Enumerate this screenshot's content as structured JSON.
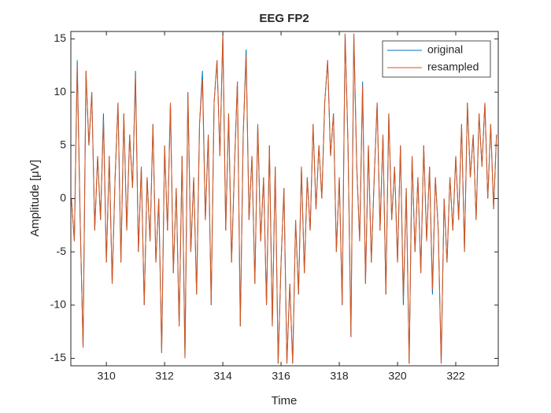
{
  "chart_data": {
    "type": "line",
    "title": "EEG FP2",
    "xlabel": "Time",
    "ylabel": "Amplitude [μV]",
    "x": [
      308.8,
      308.9,
      309.0,
      309.1,
      309.2,
      309.3,
      309.4,
      309.5,
      309.6,
      309.7,
      309.8,
      309.9,
      310.0,
      310.1,
      310.2,
      310.3,
      310.4,
      310.5,
      310.6,
      310.7,
      310.8,
      310.9,
      311.0,
      311.1,
      311.2,
      311.3,
      311.4,
      311.5,
      311.6,
      311.7,
      311.8,
      311.9,
      312.0,
      312.1,
      312.2,
      312.3,
      312.4,
      312.5,
      312.6,
      312.7,
      312.8,
      312.9,
      313.0,
      313.1,
      313.2,
      313.3,
      313.4,
      313.5,
      313.6,
      313.7,
      313.8,
      313.9,
      314.0,
      314.1,
      314.2,
      314.3,
      314.4,
      314.5,
      314.6,
      314.7,
      314.8,
      314.9,
      315.0,
      315.1,
      315.2,
      315.3,
      315.4,
      315.5,
      315.6,
      315.7,
      315.8,
      315.9,
      316.0,
      316.1,
      316.2,
      316.3,
      316.4,
      316.5,
      316.6,
      316.7,
      316.8,
      316.9,
      317.0,
      317.1,
      317.2,
      317.3,
      317.4,
      317.5,
      317.6,
      317.7,
      317.8,
      317.9,
      318.0,
      318.1,
      318.2,
      318.3,
      318.4,
      318.5,
      318.6,
      318.7,
      318.8,
      318.9,
      319.0,
      319.1,
      319.2,
      319.3,
      319.4,
      319.5,
      319.6,
      319.7,
      319.8,
      319.9,
      320.0,
      320.1,
      320.2,
      320.3,
      320.4,
      320.5,
      320.6,
      320.7,
      320.8,
      320.9,
      321.0,
      321.1,
      321.2,
      321.3,
      321.4,
      321.5,
      321.6,
      321.7,
      321.8,
      321.9,
      322.0,
      322.1,
      322.2,
      322.3,
      322.4,
      322.5,
      322.6,
      322.7,
      322.8,
      322.9,
      323.0,
      323.1,
      323.2,
      323.3,
      323.4
    ],
    "series": [
      {
        "name": "original",
        "color": "#0072BD",
        "values": [
          0,
          -4,
          13,
          -2,
          -14,
          12,
          5,
          10,
          -3,
          4,
          -2,
          8,
          -6,
          4,
          -8,
          2,
          9,
          -6,
          8,
          -3,
          6,
          1,
          12,
          -5,
          3,
          -10,
          2,
          -4,
          7,
          -6,
          0,
          -14.5,
          5,
          -3,
          9,
          -7,
          1,
          -12,
          4,
          -15,
          10,
          -5,
          2,
          -9,
          7,
          12,
          -2,
          6,
          -10,
          9,
          13,
          4,
          15.5,
          -3,
          8,
          -6,
          3,
          11,
          -12,
          6,
          14,
          -2,
          4,
          -8,
          7,
          -4,
          2,
          -10,
          5,
          -12,
          3,
          -15.5,
          -6,
          1,
          -15.5,
          -8,
          -15.5,
          -2,
          -9,
          3,
          -7,
          2,
          -3,
          7,
          -1,
          5,
          0,
          9,
          13,
          4,
          8,
          -5,
          2,
          -10,
          15.5,
          5,
          -13,
          15.5,
          3,
          -4,
          11,
          -8,
          5,
          -6,
          2,
          9,
          -3,
          6,
          -9,
          8,
          -2,
          3,
          -6,
          5,
          -10,
          1,
          -15.5,
          4,
          -5,
          2,
          -7,
          5,
          -4,
          3,
          -9,
          2,
          -3,
          -15.5,
          0,
          -6,
          2,
          -3,
          4,
          -2,
          7,
          -5,
          9,
          2,
          6,
          -2,
          8,
          3,
          9,
          0,
          7,
          -1,
          6
        ]
      },
      {
        "name": "resampled",
        "color": "#D95319",
        "values": [
          0,
          -4,
          12.5,
          -2,
          -14,
          12,
          5,
          10,
          -3,
          4,
          -2,
          7.4,
          -6,
          4,
          -8,
          2,
          9,
          -6,
          8,
          -3,
          6,
          1,
          11.5,
          -5,
          3,
          -10,
          2,
          -4,
          7,
          -6,
          0,
          -14.5,
          5,
          -3,
          9,
          -7,
          1,
          -12,
          4,
          -15,
          10,
          -5,
          2,
          -9,
          7,
          11.2,
          -2,
          6,
          -10,
          9,
          13,
          4,
          15.5,
          -3,
          8,
          -6,
          3,
          11,
          -12,
          6,
          13.4,
          -2,
          4,
          -8,
          7,
          -4,
          2,
          -10,
          5,
          -12,
          3,
          -15.5,
          -6,
          1,
          -15.5,
          -8,
          -15.5,
          -2,
          -9,
          3,
          -7,
          2,
          -3,
          7,
          -1,
          5,
          0,
          9,
          13,
          4,
          8,
          -5,
          2,
          -10,
          15.5,
          5,
          -13,
          15.5,
          3,
          -4,
          10.6,
          -8,
          5,
          -6,
          2,
          9,
          -3,
          6,
          -9,
          8,
          -2,
          3,
          -6,
          5,
          -9.4,
          1,
          -15.5,
          4,
          -5,
          2,
          -7,
          5,
          -4,
          3,
          -8.5,
          2,
          -3,
          -15.5,
          0,
          -6,
          2,
          -3,
          4,
          -2,
          7,
          -5,
          9,
          2,
          6,
          -2,
          8,
          3,
          9,
          0,
          7,
          -1,
          6
        ]
      }
    ],
    "xlim": [
      308.78,
      323.46
    ],
    "xticks": [
      310,
      312,
      314,
      316,
      318,
      320,
      322
    ],
    "ylim": [
      -15.7,
      15.7
    ],
    "yticks": [
      -15,
      -10,
      -5,
      0,
      5,
      10,
      15
    ],
    "legend": "top-right"
  }
}
